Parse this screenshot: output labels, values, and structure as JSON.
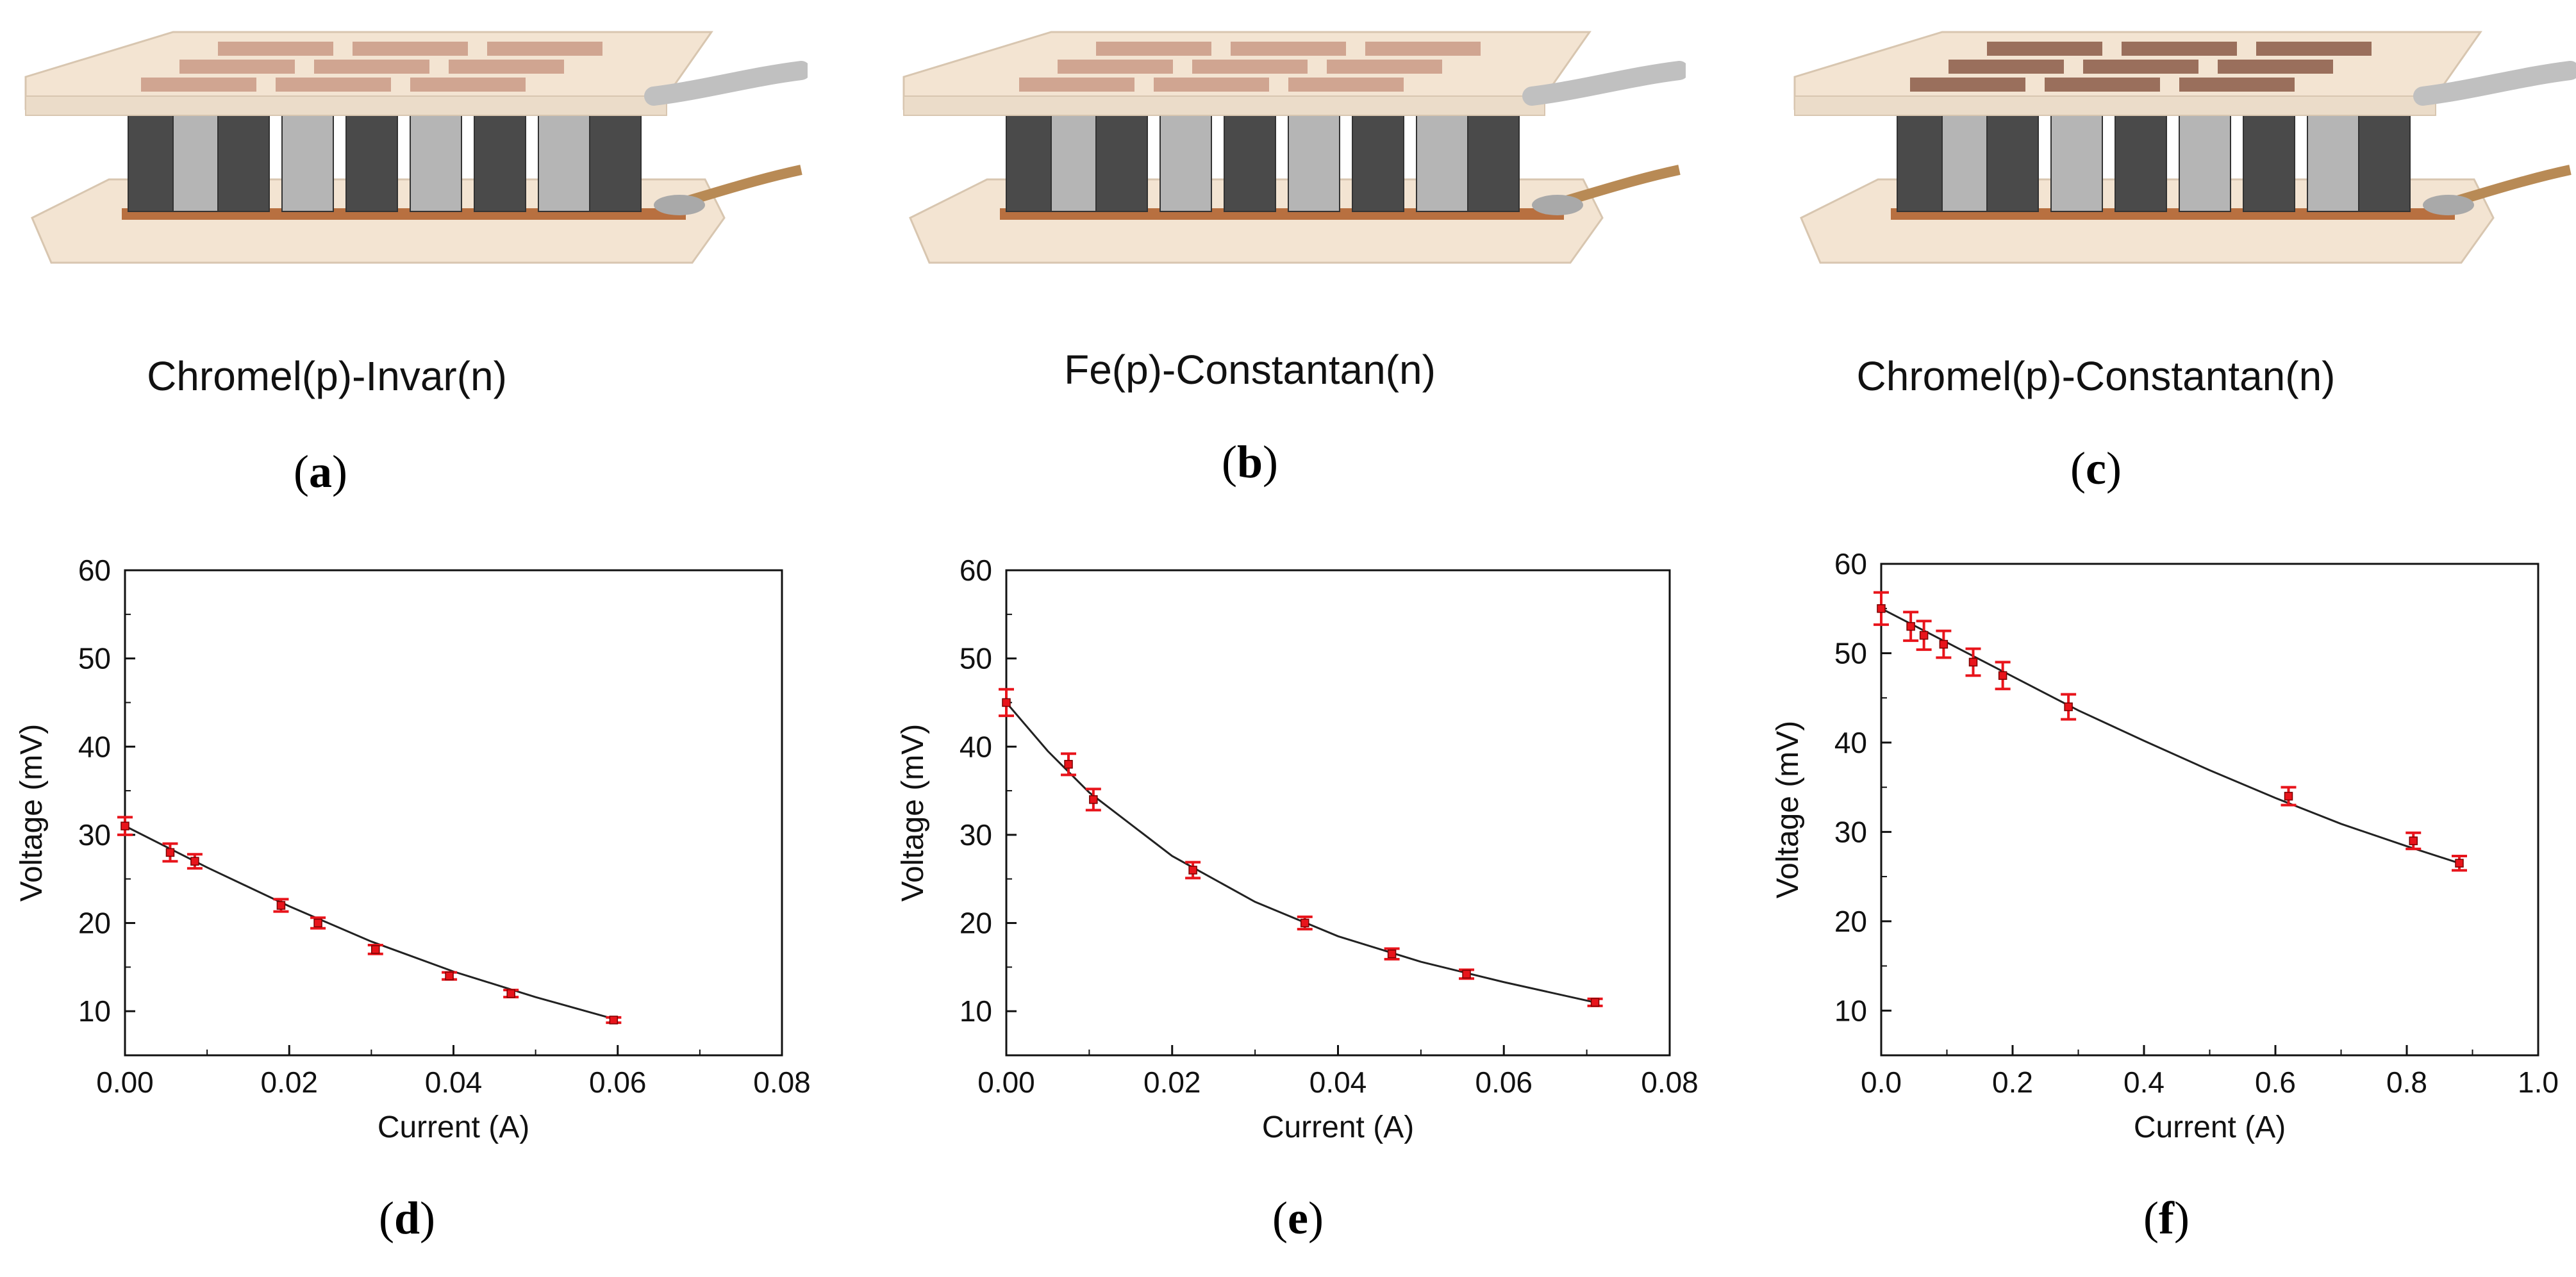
{
  "figure": {
    "photos": [
      {
        "caption": "Chromel(p)-Invar(n)",
        "letter": "a"
      },
      {
        "caption": "Fe(p)-Constantan(n)",
        "letter": "b"
      },
      {
        "caption": "Chromel(p)-Constantan(n)",
        "letter": "c"
      }
    ],
    "chart_letters": [
      "d",
      "e",
      "f"
    ]
  },
  "colors": {
    "marker": "#e8141b",
    "line": "#222222",
    "axis": "#111111",
    "ceramic": "#f3e4d2",
    "copper": "#b87040",
    "leg_dark": "#4a4a4a",
    "leg_light": "#b5b5b5"
  },
  "chart_data": [
    {
      "type": "scatter",
      "xlabel": "Current (A)",
      "ylabel": "Voltage (mV)",
      "xlim": [
        0,
        0.08
      ],
      "ylim": [
        5,
        60
      ],
      "xticks": [
        0,
        0.02,
        0.04,
        0.06,
        0.08
      ],
      "xtick_labels": [
        "0.00",
        "0.02",
        "0.04",
        "0.06",
        "0.08"
      ],
      "yticks": [
        10,
        20,
        30,
        40,
        50,
        60
      ],
      "ytick_labels": [
        "10",
        "20",
        "30",
        "40",
        "50",
        "60"
      ],
      "grid": false,
      "series": [
        {
          "x": [
            0,
            0.0055,
            0.0085,
            0.019,
            0.0235,
            0.0305,
            0.0395,
            0.047,
            0.0595
          ],
          "y": [
            31,
            28,
            27,
            22,
            20,
            17,
            14,
            12,
            9
          ],
          "err": [
            1,
            1,
            0.8,
            0.7,
            0.6,
            0.5,
            0.4,
            0.4,
            0.3
          ]
        }
      ],
      "fit_line": {
        "x": [
          0,
          0.01,
          0.02,
          0.03,
          0.04,
          0.05,
          0.06
        ],
        "y": [
          31,
          26.3,
          21.9,
          17.9,
          14.5,
          11.6,
          9
        ]
      }
    },
    {
      "type": "scatter",
      "xlabel": "Current (A)",
      "ylabel": "Voltage (mV)",
      "xlim": [
        0,
        0.08
      ],
      "ylim": [
        5,
        60
      ],
      "xticks": [
        0,
        0.02,
        0.04,
        0.06,
        0.08
      ],
      "xtick_labels": [
        "0.00",
        "0.02",
        "0.04",
        "0.06",
        "0.08"
      ],
      "yticks": [
        10,
        20,
        30,
        40,
        50,
        60
      ],
      "ytick_labels": [
        "10",
        "20",
        "30",
        "40",
        "50",
        "60"
      ],
      "grid": false,
      "series": [
        {
          "x": [
            0,
            0.0075,
            0.0105,
            0.0225,
            0.036,
            0.0465,
            0.0555,
            0.071
          ],
          "y": [
            45,
            38,
            34,
            26,
            20,
            16.5,
            14.2,
            11
          ],
          "err": [
            1.5,
            1.2,
            1.2,
            0.9,
            0.7,
            0.6,
            0.5,
            0.4
          ]
        }
      ],
      "fit_line": {
        "x": [
          0,
          0.005,
          0.01,
          0.02,
          0.03,
          0.04,
          0.05,
          0.06,
          0.071
        ],
        "y": [
          45,
          39.5,
          34.8,
          27.6,
          22.4,
          18.5,
          15.6,
          13.3,
          11
        ]
      }
    },
    {
      "type": "scatter",
      "xlabel": "Current (A)",
      "ylabel": "Voltage (mV)",
      "xlim": [
        0,
        1.0
      ],
      "ylim": [
        5,
        60
      ],
      "xticks": [
        0,
        0.2,
        0.4,
        0.6,
        0.8,
        1.0
      ],
      "xtick_labels": [
        "0.0",
        "0.2",
        "0.4",
        "0.6",
        "0.8",
        "1.0"
      ],
      "yticks": [
        10,
        20,
        30,
        40,
        50,
        60
      ],
      "ytick_labels": [
        "10",
        "20",
        "30",
        "40",
        "50",
        "60"
      ],
      "grid": false,
      "series": [
        {
          "x": [
            0,
            0.045,
            0.065,
            0.095,
            0.14,
            0.185,
            0.285,
            0.62,
            0.81,
            0.88
          ],
          "y": [
            55,
            53,
            52,
            51,
            49,
            47.5,
            44,
            34,
            29,
            26.5
          ],
          "err": [
            1.8,
            1.6,
            1.6,
            1.5,
            1.5,
            1.5,
            1.4,
            1.0,
            0.9,
            0.8
          ]
        }
      ],
      "fit_line": {
        "x": [
          0,
          0.1,
          0.2,
          0.3,
          0.4,
          0.5,
          0.6,
          0.7,
          0.8,
          0.88
        ],
        "y": [
          55,
          51.2,
          47.4,
          43.6,
          40.2,
          36.9,
          33.8,
          30.9,
          28.4,
          26.5
        ]
      }
    }
  ]
}
